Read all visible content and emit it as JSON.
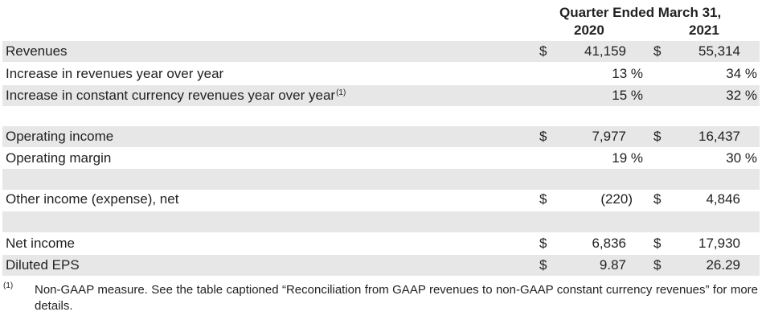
{
  "header": {
    "period": "Quarter Ended March 31,",
    "col_2020": "2020",
    "col_2021": "2021"
  },
  "rows": [
    {
      "label": "Revenues",
      "sup": "",
      "d1": "$",
      "v2020": "41,159",
      "d2": "$",
      "v2021": "55,314"
    },
    {
      "label": "Increase in revenues year over year",
      "sup": "",
      "d1": "",
      "v2020": "13 %",
      "d2": "",
      "v2021": "34 %"
    },
    {
      "label": "Increase in constant currency revenues year over year",
      "sup": "(1)",
      "d1": "",
      "v2020": "15 %",
      "d2": "",
      "v2021": "32 %"
    },
    {
      "label": "Operating income",
      "sup": "",
      "d1": "$",
      "v2020": "7,977",
      "d2": "$",
      "v2021": "16,437"
    },
    {
      "label": "Operating margin",
      "sup": "",
      "d1": "",
      "v2020": "19 %",
      "d2": "",
      "v2021": "30 %"
    },
    {
      "label": "Other income (expense), net",
      "sup": "",
      "d1": "$",
      "v2020": "(220)",
      "d2": "$",
      "v2021": "4,846"
    },
    {
      "label": "Net income",
      "sup": "",
      "d1": "$",
      "v2020": "6,836",
      "d2": "$",
      "v2021": "17,930"
    },
    {
      "label": "Diluted EPS",
      "sup": "",
      "d1": "$",
      "v2020": "9.87",
      "d2": "$",
      "v2021": "26.29"
    }
  ],
  "footnote": {
    "marker": "(1)",
    "text": "Non-GAAP measure. See the table captioned “Reconciliation from GAAP revenues to non-GAAP constant currency revenues” for more details."
  }
}
